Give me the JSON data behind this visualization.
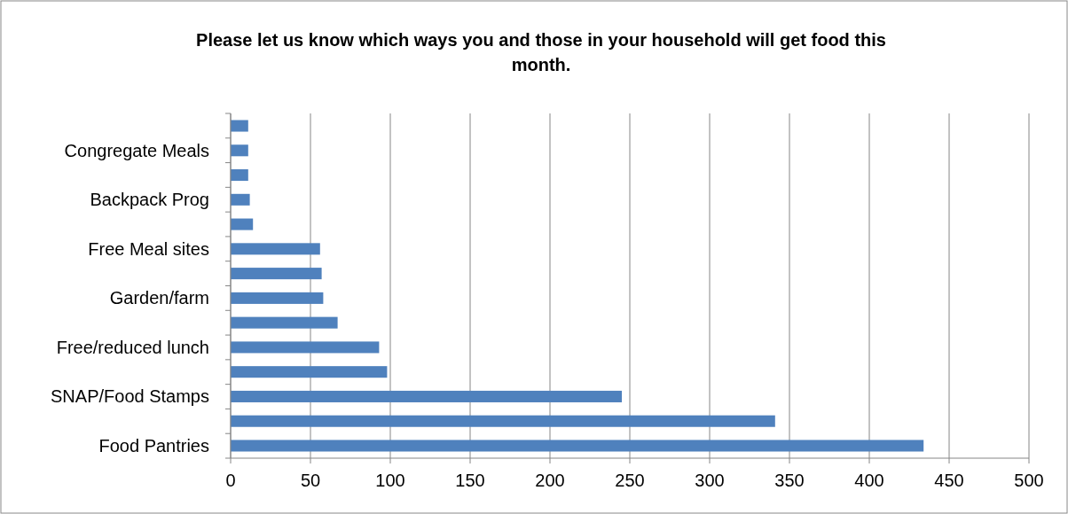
{
  "chart_data": {
    "type": "bar",
    "orientation": "horizontal",
    "title": "Please let us know which ways you and those in your household will get food this month.",
    "categories": [
      null,
      "Congregate Meals",
      null,
      "Backpack Prog",
      null,
      "Free Meal sites",
      null,
      "Garden/farm",
      null,
      "Free/reduced lunch",
      null,
      "SNAP/Food Stamps",
      null,
      "Food Pantries"
    ],
    "values": [
      11,
      11,
      11,
      12,
      14,
      56,
      57,
      58,
      67,
      93,
      98,
      245,
      341,
      434
    ],
    "color": "#4f81bd",
    "xlim": [
      0,
      500
    ],
    "xticks": [
      0,
      50,
      100,
      150,
      200,
      250,
      300,
      350,
      400,
      450,
      500
    ],
    "grid": "x"
  }
}
